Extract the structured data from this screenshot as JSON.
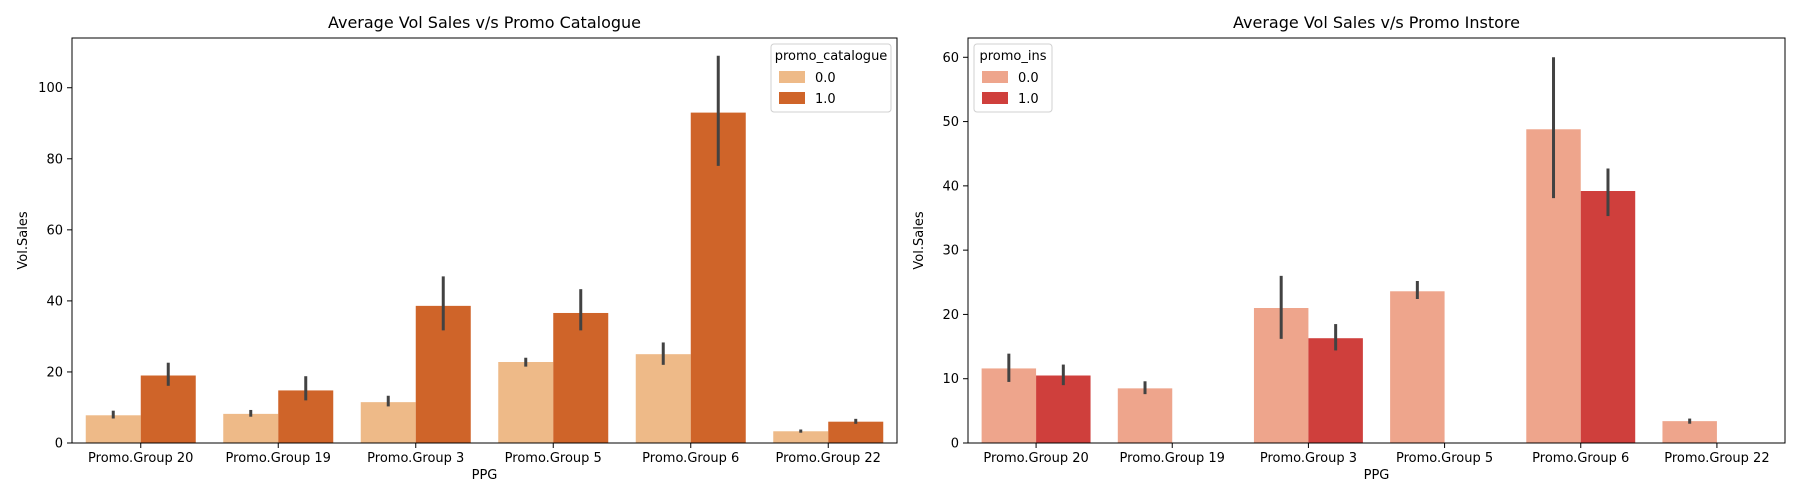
{
  "chart_data": [
    {
      "type": "bar",
      "title": "Average Vol Sales v/s Promo Catalogue",
      "xlabel": "PPG",
      "ylabel": "Vol.Sales",
      "ylim": [
        0,
        114
      ],
      "yticks": [
        0,
        20,
        40,
        60,
        80,
        100
      ],
      "grid": false,
      "legend": {
        "title": "promo_catalogue",
        "placement": "top-right"
      },
      "categories": [
        "Promo.Group 20",
        "Promo.Group 19",
        "Promo.Group 3",
        "Promo.Group 5",
        "Promo.Group 6",
        "Promo.Group 22"
      ],
      "series": [
        {
          "name": "0.0",
          "color": "#eeba88",
          "values": [
            7.8,
            8.2,
            11.5,
            22.8,
            25.0,
            3.3
          ],
          "ci_low": [
            6.9,
            7.4,
            10.3,
            21.5,
            22.0,
            2.9
          ],
          "ci_high": [
            9.1,
            9.3,
            13.3,
            24.0,
            28.3,
            3.8
          ]
        },
        {
          "name": "1.0",
          "color": "#cf6429",
          "values": [
            19.0,
            14.8,
            38.6,
            36.6,
            93.0,
            6.0
          ],
          "ci_low": [
            16.1,
            12.0,
            31.7,
            31.7,
            78.0,
            5.4
          ],
          "ci_high": [
            22.6,
            18.8,
            46.9,
            43.3,
            109.0,
            6.8
          ]
        }
      ]
    },
    {
      "type": "bar",
      "title": "Average Vol Sales v/s Promo Instore",
      "xlabel": "PPG",
      "ylabel": "Vol.Sales",
      "ylim": [
        0,
        63
      ],
      "yticks": [
        0,
        10,
        20,
        30,
        40,
        50,
        60
      ],
      "grid": false,
      "legend": {
        "title": "promo_ins",
        "placement": "top-left"
      },
      "categories": [
        "Promo.Group 20",
        "Promo.Group 19",
        "Promo.Group 3",
        "Promo.Group 5",
        "Promo.Group 6",
        "Promo.Group 22"
      ],
      "series": [
        {
          "name": "0.0",
          "color": "#eea58c",
          "values": [
            11.6,
            8.5,
            21.0,
            23.6,
            48.8,
            3.4
          ],
          "ci_low": [
            9.5,
            7.6,
            16.2,
            22.4,
            38.1,
            3.0
          ],
          "ci_high": [
            13.9,
            9.6,
            26.0,
            25.2,
            60.0,
            3.8
          ]
        },
        {
          "name": "1.0",
          "color": "#cf3f3c",
          "values": [
            10.5,
            null,
            16.3,
            null,
            39.2,
            null
          ],
          "ci_low": [
            9.0,
            null,
            14.4,
            null,
            35.3,
            null
          ],
          "ci_high": [
            12.2,
            null,
            18.5,
            null,
            42.7,
            null
          ]
        }
      ]
    }
  ]
}
